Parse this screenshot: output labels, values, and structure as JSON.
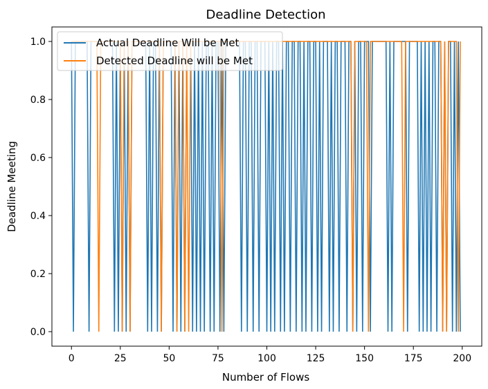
{
  "chart_data": {
    "type": "line",
    "title": "Deadline Detection",
    "xlabel": "Number of Flows",
    "ylabel": "Deadline Meeting",
    "xlim": [
      -10,
      210
    ],
    "ylim": [
      -0.05,
      1.05
    ],
    "x_ticks": [
      0,
      25,
      50,
      75,
      100,
      125,
      150,
      175,
      200
    ],
    "y_ticks": [
      0.0,
      0.2,
      0.4,
      0.6,
      0.8,
      1.0
    ],
    "grid": false,
    "legend_position": "top-left",
    "series": [
      {
        "name": "Actual Deadline Will be Met",
        "color": "#1f77b4",
        "values": [
          1,
          0,
          1,
          1,
          1,
          1,
          1,
          1,
          1,
          0,
          1,
          1,
          1,
          1,
          1,
          1,
          1,
          1,
          1,
          1,
          1,
          1,
          0,
          1,
          0,
          1,
          0,
          1,
          0,
          1,
          0,
          1,
          1,
          1,
          1,
          1,
          1,
          1,
          1,
          0,
          1,
          0,
          1,
          1,
          0,
          1,
          0,
          1,
          1,
          1,
          1,
          1,
          0,
          1,
          0,
          1,
          0,
          1,
          0,
          1,
          1,
          1,
          0,
          1,
          0,
          1,
          0,
          1,
          0,
          1,
          1,
          0,
          1,
          0,
          1,
          1,
          0,
          1,
          0,
          1,
          1,
          1,
          1,
          1,
          1,
          1,
          1,
          0,
          1,
          1,
          0,
          1,
          1,
          0,
          1,
          1,
          0,
          1,
          1,
          1,
          0,
          1,
          0,
          1,
          0,
          1,
          1,
          0,
          1,
          0,
          1,
          1,
          0,
          1,
          1,
          0,
          1,
          1,
          0,
          1,
          0,
          1,
          1,
          0,
          1,
          1,
          0,
          1,
          0,
          1,
          1,
          1,
          0,
          1,
          0,
          1,
          1,
          0,
          1,
          1,
          1,
          0,
          1,
          1,
          0,
          1,
          0,
          1,
          1,
          0,
          1,
          1,
          1,
          0,
          1,
          1,
          1,
          1,
          1,
          1,
          1,
          1,
          0,
          1,
          0,
          1,
          1,
          1,
          1,
          1,
          1,
          1,
          0,
          1,
          1,
          1,
          1,
          1,
          0,
          1,
          0,
          1,
          0,
          1,
          0,
          1,
          1,
          0,
          1,
          1,
          0,
          1,
          0,
          1,
          1,
          0,
          1,
          0,
          1,
          0
        ]
      },
      {
        "name": "Detected Deadline will be Met",
        "color": "#ff7f0e",
        "values": [
          1,
          1,
          1,
          1,
          1,
          1,
          1,
          1,
          1,
          1,
          1,
          1,
          1,
          1,
          0,
          1,
          1,
          1,
          1,
          1,
          1,
          1,
          1,
          1,
          1,
          1,
          0,
          1,
          1,
          1,
          0,
          1,
          1,
          1,
          1,
          1,
          1,
          1,
          1,
          1,
          1,
          1,
          1,
          1,
          1,
          1,
          0,
          1,
          1,
          1,
          1,
          1,
          1,
          1,
          0,
          1,
          1,
          1,
          0,
          1,
          0,
          1,
          1,
          1,
          1,
          1,
          1,
          1,
          1,
          1,
          1,
          1,
          1,
          1,
          1,
          1,
          1,
          0,
          1,
          1,
          1,
          1,
          1,
          1,
          1,
          1,
          1,
          1,
          1,
          1,
          1,
          1,
          1,
          1,
          1,
          1,
          1,
          1,
          1,
          1,
          1,
          1,
          1,
          1,
          1,
          1,
          1,
          1,
          1,
          1,
          1,
          1,
          1,
          1,
          1,
          1,
          1,
          1,
          1,
          1,
          1,
          1,
          1,
          1,
          1,
          1,
          1,
          1,
          1,
          1,
          1,
          1,
          1,
          1,
          1,
          1,
          1,
          1,
          1,
          1,
          1,
          1,
          1,
          1,
          0,
          1,
          1,
          1,
          1,
          1,
          1,
          1,
          0,
          1,
          1,
          1,
          1,
          1,
          1,
          1,
          1,
          1,
          1,
          1,
          1,
          1,
          1,
          1,
          1,
          1,
          0,
          1,
          1,
          1,
          1,
          1,
          1,
          1,
          1,
          1,
          1,
          1,
          1,
          1,
          1,
          1,
          1,
          1,
          1,
          1,
          0,
          1,
          0,
          1,
          1,
          1,
          1,
          1,
          0,
          1
        ]
      }
    ]
  }
}
